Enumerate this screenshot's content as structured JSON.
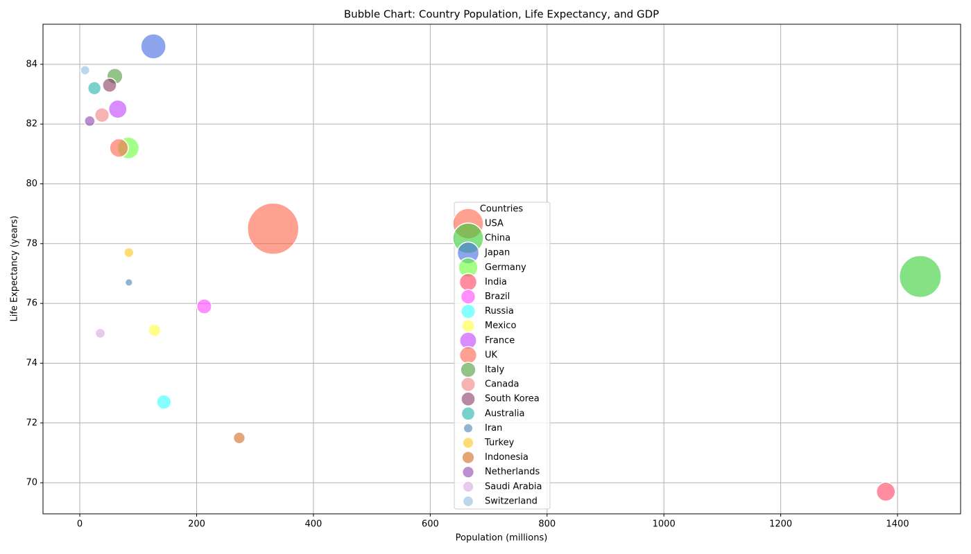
{
  "chart_data": {
    "type": "bubble",
    "title": "Bubble Chart: Country Population, Life Expectancy, and GDP",
    "x_label": "Population (millions)",
    "y_label": "Life Expectancy (years)",
    "legend_title": "Countries",
    "legend_position": "center",
    "grid": true,
    "xlim": [
      -63,
      1508
    ],
    "xticks": [
      0,
      200,
      400,
      600,
      800,
      1000,
      1200,
      1400
    ],
    "ylim": [
      68.96,
      85.34
    ],
    "yticks": [
      70,
      72,
      74,
      76,
      78,
      80,
      82,
      84
    ],
    "series": [
      {
        "name": "USA",
        "color": "#ff6347",
        "x": [
          331
        ],
        "values": [
          78.5
        ],
        "sizes": [
          21.4
        ]
      },
      {
        "name": "China",
        "color": "#32cd32",
        "x": [
          1439
        ],
        "values": [
          76.9
        ],
        "sizes": [
          14.3
        ]
      },
      {
        "name": "Japan",
        "color": "#4169e1",
        "x": [
          126
        ],
        "values": [
          84.6
        ],
        "sizes": [
          5.1
        ]
      },
      {
        "name": "Germany",
        "color": "#66ff33",
        "x": [
          83
        ],
        "values": [
          81.2
        ],
        "sizes": [
          3.8
        ]
      },
      {
        "name": "India",
        "color": "#ff3f5f",
        "x": [
          1380
        ],
        "values": [
          69.7
        ],
        "sizes": [
          2.9
        ]
      },
      {
        "name": "Brazil",
        "color": "#ff44ff",
        "x": [
          213
        ],
        "values": [
          75.9
        ],
        "sizes": [
          1.8
        ]
      },
      {
        "name": "Russia",
        "color": "#33ffff",
        "x": [
          144
        ],
        "values": [
          72.7
        ],
        "sizes": [
          1.7
        ]
      },
      {
        "name": "Mexico",
        "color": "#ffff33",
        "x": [
          128
        ],
        "values": [
          75.1
        ],
        "sizes": [
          1.2
        ]
      },
      {
        "name": "France",
        "color": "#bf40ff",
        "x": [
          65
        ],
        "values": [
          82.5
        ],
        "sizes": [
          2.7
        ]
      },
      {
        "name": "UK",
        "color": "#ff6347",
        "x": [
          67
        ],
        "values": [
          81.2
        ],
        "sizes": [
          2.8
        ]
      },
      {
        "name": "Italy",
        "color": "#4b9b3b",
        "x": [
          60
        ],
        "values": [
          83.6
        ],
        "sizes": [
          2.0
        ]
      },
      {
        "name": "Canada",
        "color": "#f08080",
        "x": [
          38
        ],
        "values": [
          82.3
        ],
        "sizes": [
          1.7
        ]
      },
      {
        "name": "South Korea",
        "color": "#8b3a62",
        "x": [
          51
        ],
        "values": [
          83.3
        ],
        "sizes": [
          1.6
        ]
      },
      {
        "name": "Australia",
        "color": "#20b2aa",
        "x": [
          25
        ],
        "values": [
          83.2
        ],
        "sizes": [
          1.4
        ]
      },
      {
        "name": "Iran",
        "color": "#4682b4",
        "x": [
          84
        ],
        "values": [
          76.7
        ],
        "sizes": [
          0.45
        ]
      },
      {
        "name": "Turkey",
        "color": "#ffc61a",
        "x": [
          84
        ],
        "values": [
          77.7
        ],
        "sizes": [
          0.76
        ]
      },
      {
        "name": "Indonesia",
        "color": "#d2691e",
        "x": [
          273
        ],
        "values": [
          71.5
        ],
        "sizes": [
          1.1
        ]
      },
      {
        "name": "Netherlands",
        "color": "#8e44ad",
        "x": [
          17
        ],
        "values": [
          82.1
        ],
        "sizes": [
          0.91
        ]
      },
      {
        "name": "Saudi Arabia",
        "color": "#d8a9e0",
        "x": [
          35
        ],
        "values": [
          75.0
        ],
        "sizes": [
          0.79
        ]
      },
      {
        "name": "Switzerland",
        "color": "#8fbce0",
        "x": [
          9
        ],
        "values": [
          83.8
        ],
        "sizes": [
          0.7
        ]
      }
    ]
  }
}
